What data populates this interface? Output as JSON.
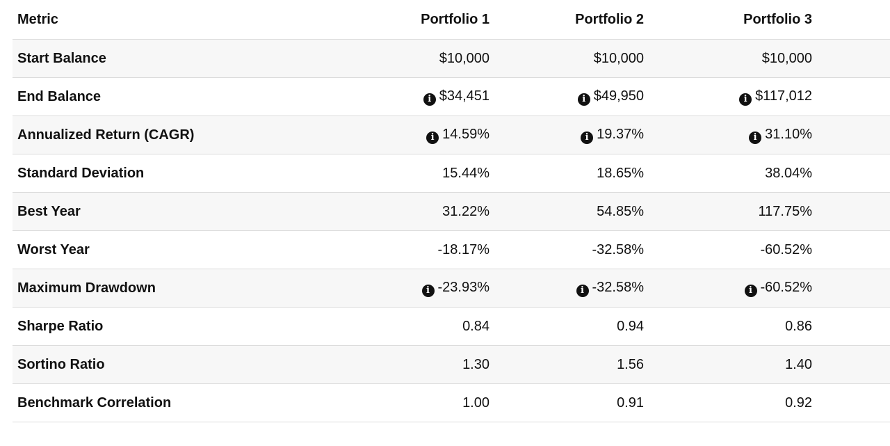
{
  "table": {
    "headers": [
      "Metric",
      "Portfolio 1",
      "Portfolio 2",
      "Portfolio 3"
    ],
    "rows": [
      {
        "metric": "Start Balance",
        "values": [
          {
            "text": "$10,000",
            "info": false
          },
          {
            "text": "$10,000",
            "info": false
          },
          {
            "text": "$10,000",
            "info": false
          }
        ]
      },
      {
        "metric": "End Balance",
        "values": [
          {
            "text": "$34,451",
            "info": true
          },
          {
            "text": "$49,950",
            "info": true
          },
          {
            "text": "$117,012",
            "info": true
          }
        ]
      },
      {
        "metric": "Annualized Return (CAGR)",
        "values": [
          {
            "text": "14.59%",
            "info": true
          },
          {
            "text": "19.37%",
            "info": true
          },
          {
            "text": "31.10%",
            "info": true
          }
        ]
      },
      {
        "metric": "Standard Deviation",
        "values": [
          {
            "text": "15.44%",
            "info": false
          },
          {
            "text": "18.65%",
            "info": false
          },
          {
            "text": "38.04%",
            "info": false
          }
        ]
      },
      {
        "metric": "Best Year",
        "values": [
          {
            "text": "31.22%",
            "info": false
          },
          {
            "text": "54.85%",
            "info": false
          },
          {
            "text": "117.75%",
            "info": false
          }
        ]
      },
      {
        "metric": "Worst Year",
        "values": [
          {
            "text": "-18.17%",
            "info": false
          },
          {
            "text": "-32.58%",
            "info": false
          },
          {
            "text": "-60.52%",
            "info": false
          }
        ]
      },
      {
        "metric": "Maximum Drawdown",
        "values": [
          {
            "text": "-23.93%",
            "info": true
          },
          {
            "text": "-32.58%",
            "info": true
          },
          {
            "text": "-60.52%",
            "info": true
          }
        ]
      },
      {
        "metric": "Sharpe Ratio",
        "values": [
          {
            "text": "0.84",
            "info": false
          },
          {
            "text": "0.94",
            "info": false
          },
          {
            "text": "0.86",
            "info": false
          }
        ]
      },
      {
        "metric": "Sortino Ratio",
        "values": [
          {
            "text": "1.30",
            "info": false
          },
          {
            "text": "1.56",
            "info": false
          },
          {
            "text": "1.40",
            "info": false
          }
        ]
      },
      {
        "metric": "Benchmark Correlation",
        "values": [
          {
            "text": "1.00",
            "info": false
          },
          {
            "text": "0.91",
            "info": false
          },
          {
            "text": "0.92",
            "info": false
          }
        ]
      }
    ]
  },
  "icons": {
    "info": "info-circle-icon",
    "info_glyph": "i"
  },
  "colors": {
    "text": "#111111",
    "row_stripe": "#f7f7f7",
    "border": "#dcdcdc",
    "icon_bg": "#111111"
  }
}
